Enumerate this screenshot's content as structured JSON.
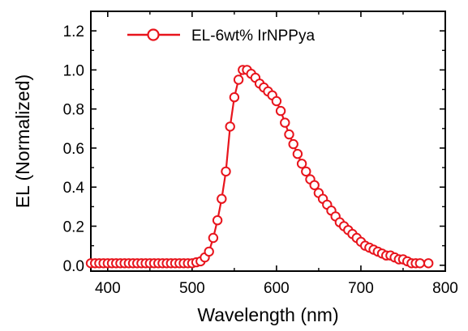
{
  "chart_data": {
    "type": "line",
    "xlabel": "Wavelength (nm)",
    "ylabel": "EL (Normalized)",
    "xlim": [
      380,
      800
    ],
    "ylim": [
      -0.03,
      1.3
    ],
    "x_ticks": [
      400,
      500,
      600,
      700,
      800
    ],
    "y_ticks": [
      0.0,
      0.2,
      0.4,
      0.6,
      0.8,
      1.0,
      1.2
    ],
    "x_tick_labels": [
      "400",
      "500",
      "600",
      "700",
      "800"
    ],
    "y_tick_labels": [
      "0.0",
      "0.2",
      "0.4",
      "0.6",
      "0.8",
      "1.0",
      "1.2"
    ],
    "grid": false,
    "legend_position": "top-left",
    "colors": {
      "series": "#e8141c",
      "marker_fill": "#ffffff",
      "axis": "#000000"
    },
    "series": [
      {
        "name": "EL-6wt% IrNPPya",
        "marker": "open-circle",
        "x": [
          380,
          385,
          390,
          395,
          400,
          405,
          410,
          415,
          420,
          425,
          430,
          435,
          440,
          445,
          450,
          455,
          460,
          465,
          470,
          475,
          480,
          485,
          490,
          495,
          500,
          505,
          510,
          515,
          520,
          525,
          530,
          535,
          540,
          545,
          550,
          555,
          560,
          565,
          570,
          575,
          580,
          585,
          590,
          595,
          600,
          605,
          610,
          615,
          620,
          625,
          630,
          635,
          640,
          645,
          650,
          655,
          660,
          665,
          670,
          675,
          680,
          685,
          690,
          695,
          700,
          705,
          710,
          715,
          720,
          725,
          730,
          735,
          740,
          745,
          750,
          755,
          760,
          765,
          770,
          780
        ],
        "values": [
          0.01,
          0.01,
          0.01,
          0.01,
          0.01,
          0.01,
          0.01,
          0.01,
          0.01,
          0.01,
          0.01,
          0.01,
          0.01,
          0.01,
          0.01,
          0.01,
          0.01,
          0.01,
          0.01,
          0.01,
          0.01,
          0.01,
          0.01,
          0.01,
          0.01,
          0.015,
          0.02,
          0.04,
          0.07,
          0.14,
          0.23,
          0.34,
          0.48,
          0.71,
          0.86,
          0.95,
          1.0,
          1.0,
          0.98,
          0.96,
          0.93,
          0.91,
          0.89,
          0.87,
          0.84,
          0.79,
          0.73,
          0.67,
          0.62,
          0.57,
          0.52,
          0.48,
          0.44,
          0.41,
          0.37,
          0.34,
          0.31,
          0.28,
          0.25,
          0.22,
          0.2,
          0.18,
          0.16,
          0.14,
          0.12,
          0.1,
          0.09,
          0.08,
          0.07,
          0.06,
          0.05,
          0.05,
          0.04,
          0.03,
          0.03,
          0.02,
          0.01,
          0.01,
          0.01,
          0.01
        ]
      }
    ]
  }
}
